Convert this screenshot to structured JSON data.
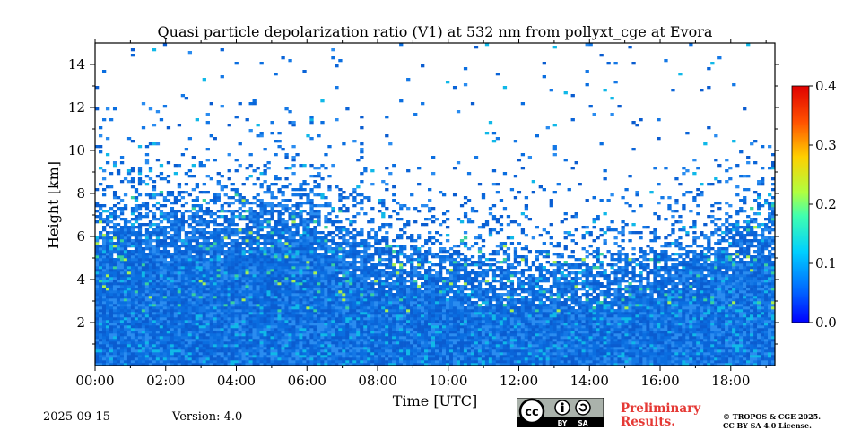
{
  "chart_data": {
    "type": "heatmap",
    "title": "Quasi particle depolarization ratio (V1) at 532 nm from pollyxt_cge at Evora",
    "xlabel": "Time [UTC]",
    "ylabel": "Height [km]",
    "x_ticks": [
      "00:00",
      "02:00",
      "04:00",
      "06:00",
      "08:00",
      "10:00",
      "12:00",
      "14:00",
      "16:00",
      "18:00"
    ],
    "x_tick_hours": [
      0,
      2,
      4,
      6,
      8,
      10,
      12,
      14,
      16,
      18
    ],
    "xlim_hours": [
      0,
      19.25
    ],
    "y_ticks": [
      "2",
      "4",
      "6",
      "8",
      "10",
      "12",
      "14"
    ],
    "y_tick_values": [
      2,
      4,
      6,
      8,
      10,
      12,
      14
    ],
    "ylim": [
      0,
      15
    ],
    "colorbar": {
      "ticks": [
        "0.0",
        "0.1",
        "0.2",
        "0.3",
        "0.4"
      ],
      "tick_values": [
        0.0,
        0.1,
        0.2,
        0.3,
        0.4
      ],
      "range": [
        0.0,
        0.4
      ],
      "colormap": "jet"
    },
    "signal_top_km": [
      {
        "hour": 0,
        "top": 7.5
      },
      {
        "hour": 2,
        "top": 7.2
      },
      {
        "hour": 4,
        "top": 7.4
      },
      {
        "hour": 6,
        "top": 7.8
      },
      {
        "hour": 7,
        "top": 6.3
      },
      {
        "hour": 9,
        "top": 5.6
      },
      {
        "hour": 11,
        "top": 5.0
      },
      {
        "hour": 13,
        "top": 4.8
      },
      {
        "hour": 15,
        "top": 5.0
      },
      {
        "hour": 17,
        "top": 5.6
      },
      {
        "hour": 19.25,
        "top": 7.2
      }
    ],
    "typical_value": 0.02
  },
  "footer": {
    "date": "2025-09-15",
    "version": "Version: 4.0",
    "preliminary_line1": "Preliminary",
    "preliminary_line2": "Results.",
    "copyright_line1": "© TROPOS & CGE 2025.",
    "copyright_line2": "CC BY SA 4.0 License.",
    "license_badge": {
      "cc": "cc",
      "by": "BY",
      "sa": "SA"
    }
  }
}
